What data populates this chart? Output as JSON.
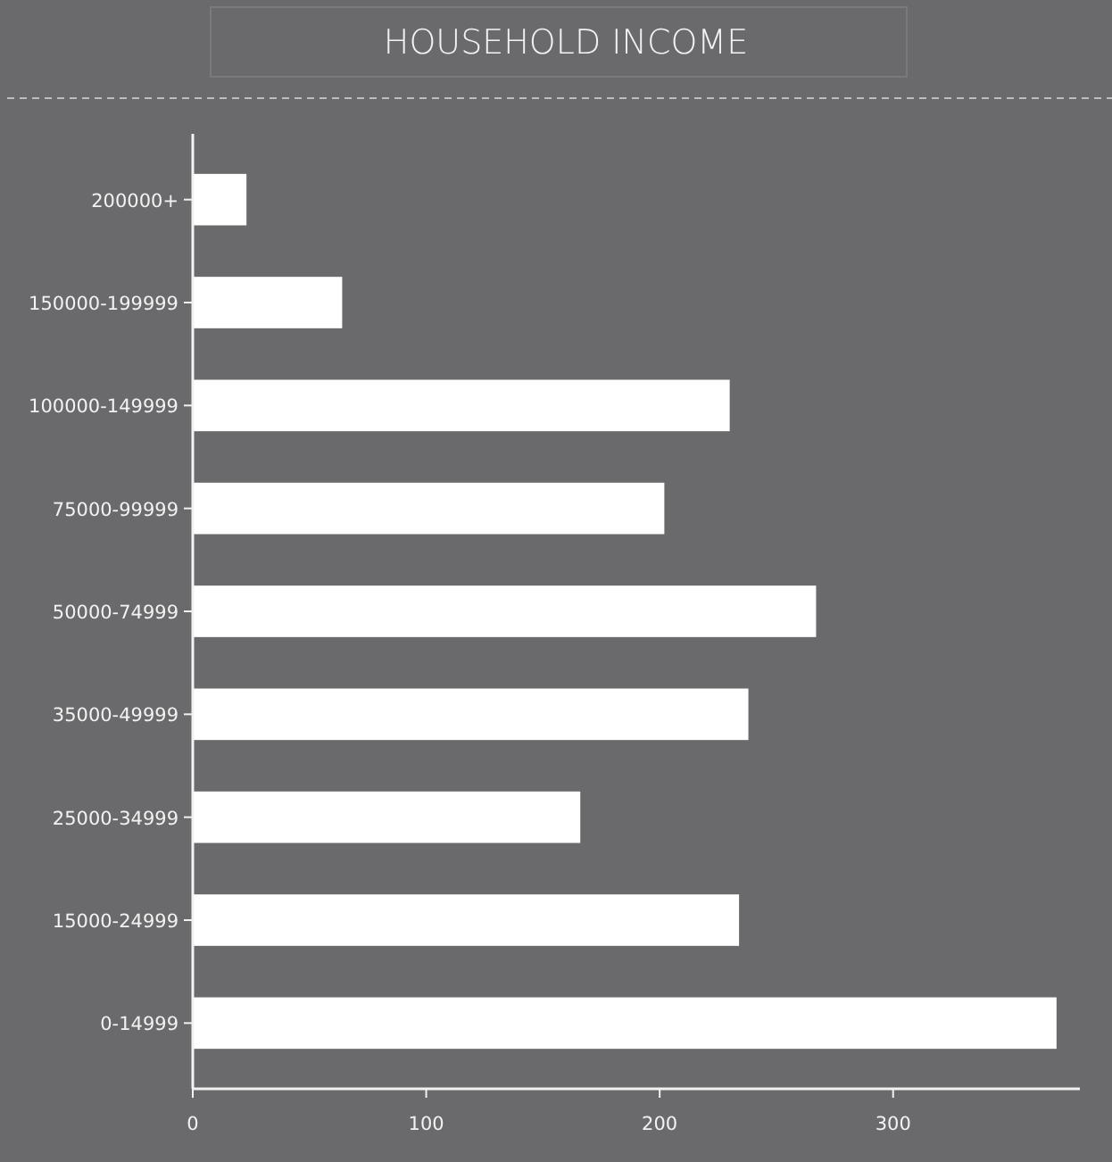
{
  "chart_data": {
    "type": "bar",
    "title": "HOUSEHOLD INCOME",
    "orientation": "horizontal",
    "categories": [
      "200000+",
      "150000-199999",
      "100000-149999",
      "75000-99999",
      "50000-74999",
      "35000-49999",
      "25000-34999",
      "15000-24999",
      "0-14999"
    ],
    "values": [
      23,
      64,
      230,
      202,
      267,
      238,
      166,
      234,
      370
    ],
    "color": "#ffffff",
    "xlim": [
      0,
      380
    ],
    "xticks": [
      0,
      100,
      200,
      300
    ],
    "grid": false
  }
}
